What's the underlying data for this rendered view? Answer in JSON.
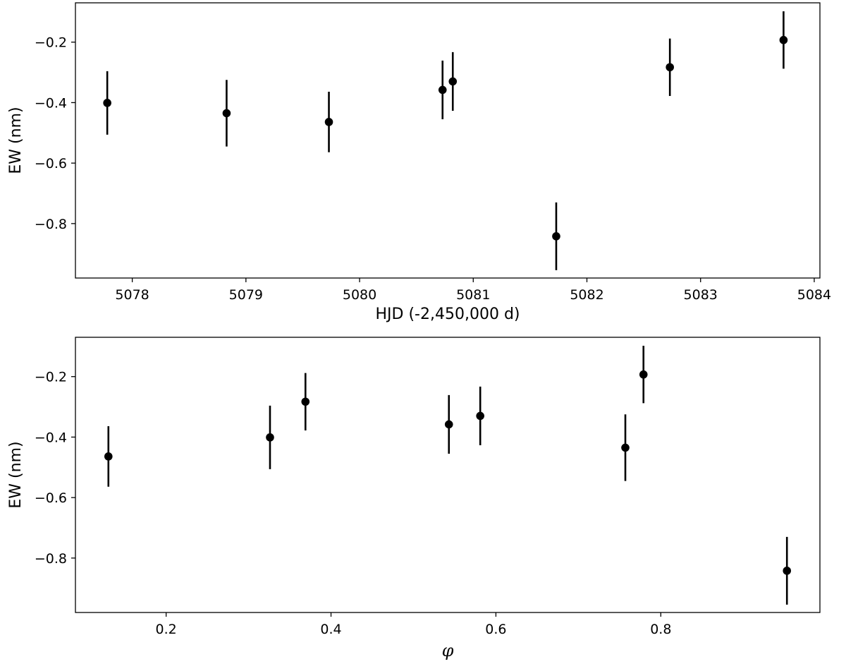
{
  "chart_data": [
    {
      "type": "scatter",
      "xlabel": "HJD (-2,450,000 d)",
      "ylabel": "EW (nm)",
      "xlim": [
        5077.5,
        5084.05
      ],
      "ylim": [
        -0.98,
        -0.07
      ],
      "xticks": [
        5078,
        5079,
        5080,
        5081,
        5082,
        5083,
        5084
      ],
      "xtick_labels": [
        "5078",
        "5079",
        "5080",
        "5081",
        "5082",
        "5083",
        "5084"
      ],
      "yticks": [
        -0.2,
        -0.4,
        -0.6,
        -0.8
      ],
      "ytick_labels": [
        "−0.2",
        "−0.4",
        "−0.6",
        "−0.8"
      ],
      "grid": false,
      "marker_color": "#000000",
      "points": [
        {
          "x": 5077.78,
          "y": -0.401,
          "err": 0.105
        },
        {
          "x": 5078.83,
          "y": -0.435,
          "err": 0.11
        },
        {
          "x": 5079.73,
          "y": -0.464,
          "err": 0.1
        },
        {
          "x": 5080.73,
          "y": -0.358,
          "err": 0.097
        },
        {
          "x": 5080.82,
          "y": -0.33,
          "err": 0.097
        },
        {
          "x": 5081.73,
          "y": -0.842,
          "err": 0.112
        },
        {
          "x": 5082.73,
          "y": -0.283,
          "err": 0.095
        },
        {
          "x": 5083.73,
          "y": -0.193,
          "err": 0.095
        }
      ]
    },
    {
      "type": "scatter",
      "xlabel": "φ",
      "ylabel": "EW (nm)",
      "xlim": [
        0.09,
        0.993
      ],
      "ylim": [
        -0.98,
        -0.07
      ],
      "xticks": [
        0.2,
        0.4,
        0.6,
        0.8
      ],
      "xtick_labels": [
        "0.2",
        "0.4",
        "0.6",
        "0.8"
      ],
      "yticks": [
        -0.2,
        -0.4,
        -0.6,
        -0.8
      ],
      "ytick_labels": [
        "−0.2",
        "−0.4",
        "−0.6",
        "−0.8"
      ],
      "grid": false,
      "marker_color": "#000000",
      "points": [
        {
          "x": 0.13,
          "y": -0.464,
          "err": 0.1
        },
        {
          "x": 0.326,
          "y": -0.401,
          "err": 0.105
        },
        {
          "x": 0.369,
          "y": -0.283,
          "err": 0.095
        },
        {
          "x": 0.543,
          "y": -0.358,
          "err": 0.097
        },
        {
          "x": 0.581,
          "y": -0.33,
          "err": 0.097
        },
        {
          "x": 0.757,
          "y": -0.435,
          "err": 0.11
        },
        {
          "x": 0.779,
          "y": -0.193,
          "err": 0.095
        },
        {
          "x": 0.953,
          "y": -0.842,
          "err": 0.112
        }
      ]
    }
  ]
}
